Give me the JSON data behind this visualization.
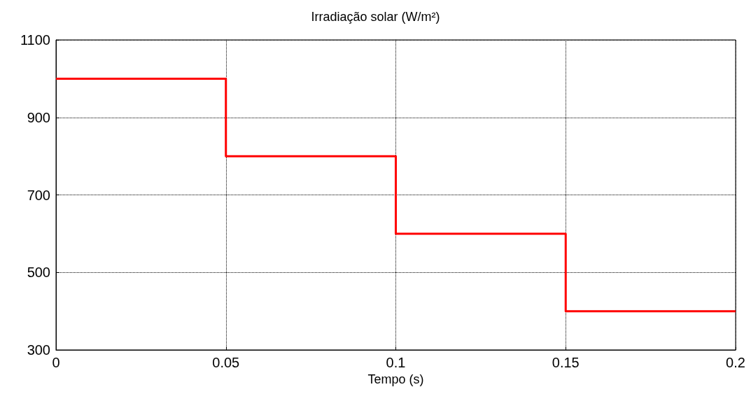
{
  "chart_data": {
    "type": "step",
    "title": "Irradiação solar (W/m²)",
    "xlabel": "Tempo (s)",
    "x": [
      0,
      0.05,
      0.1,
      0.15,
      0.2
    ],
    "series": [
      {
        "color": "#ff0000",
        "values": [
          1000,
          800,
          600,
          400,
          400
        ]
      }
    ],
    "xlim": [
      0,
      0.2
    ],
    "xticks": [
      0,
      0.05,
      0.1,
      0.15,
      0.2
    ],
    "ylim": [
      300,
      1100
    ],
    "yticks": [
      300,
      500,
      700,
      900,
      1100
    ],
    "grid": true,
    "marker": "none",
    "line_style": "solid"
  }
}
